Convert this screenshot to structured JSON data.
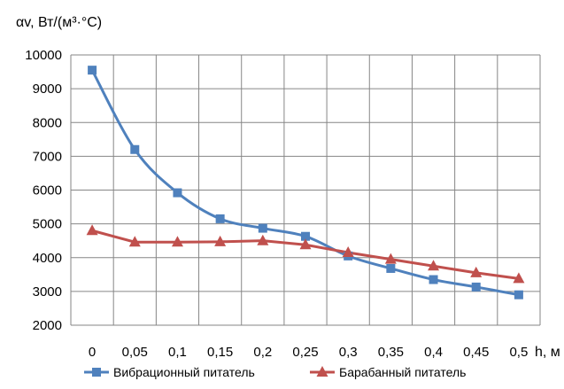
{
  "chart_data": {
    "type": "line",
    "ylabel": "αv, Вт/(м³·°С)",
    "xlabel": "h, м",
    "x": [
      "0",
      "0,05",
      "0,1",
      "0,15",
      "0,2",
      "0,25",
      "0,3",
      "0,35",
      "0,4",
      "0,45",
      "0,5"
    ],
    "y_ticks": [
      "2000",
      "3000",
      "4000",
      "5000",
      "6000",
      "7000",
      "8000",
      "9000",
      "10000"
    ],
    "ylim": [
      2000,
      10000
    ],
    "grid": true,
    "legend_position": "bottom",
    "series": [
      {
        "name": "Вибрационный питатель",
        "color": "#4f81bd",
        "marker": "square",
        "values": [
          9550,
          7200,
          5920,
          5150,
          4870,
          4630,
          4050,
          3680,
          3350,
          3130,
          2900
        ]
      },
      {
        "name": "Барабанный питатель",
        "color": "#c0504d",
        "marker": "triangle",
        "values": [
          4800,
          4460,
          4460,
          4470,
          4500,
          4380,
          4150,
          3950,
          3750,
          3550,
          3380
        ]
      }
    ]
  }
}
